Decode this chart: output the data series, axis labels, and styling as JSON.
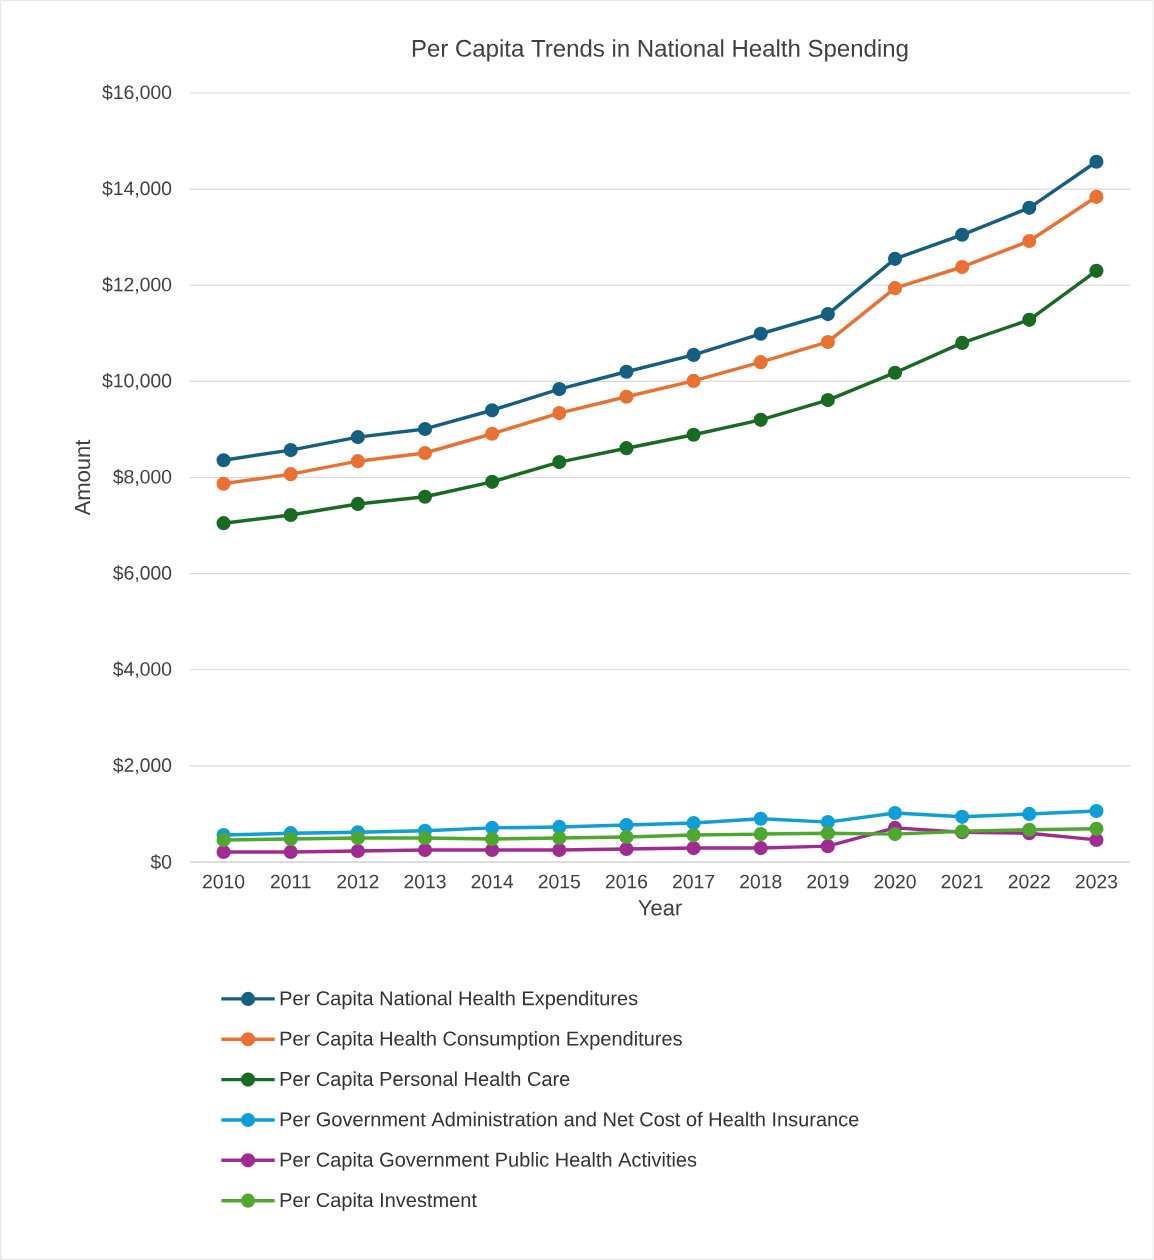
{
  "chart_data": {
    "type": "line",
    "title": "Per Capita Trends in National Health Spending",
    "xlabel": "Year",
    "ylabel": "Amount",
    "categories": [
      "2010",
      "2011",
      "2012",
      "2013",
      "2014",
      "2015",
      "2016",
      "2017",
      "2018",
      "2019",
      "2020",
      "2021",
      "2022",
      "2023"
    ],
    "series": [
      {
        "name": "Per Capita National Health Expenditures",
        "color": "#156082",
        "values": [
          8360,
          8570,
          8840,
          9010,
          9400,
          9840,
          10200,
          10550,
          10990,
          11400,
          12550,
          13050,
          13610,
          14570
        ]
      },
      {
        "name": "Per Capita Health Consumption Expenditures",
        "color": "#e97132",
        "values": [
          7870,
          8070,
          8340,
          8510,
          8910,
          9340,
          9680,
          10010,
          10400,
          10820,
          11940,
          12380,
          12920,
          13840
        ]
      },
      {
        "name": "Per Capita  Personal Health Care",
        "color": "#196b24",
        "values": [
          7050,
          7220,
          7450,
          7600,
          7910,
          8320,
          8610,
          8890,
          9200,
          9610,
          10180,
          10800,
          11280,
          12300
        ]
      },
      {
        "name": "Per Government Administration and Net Cost of Health Insurance",
        "color": "#0f9ed5",
        "values": [
          560,
          600,
          620,
          650,
          710,
          730,
          770,
          810,
          900,
          830,
          1020,
          940,
          1000,
          1060
        ]
      },
      {
        "name": "Per Capita Government Public Health Activities",
        "color": "#a02b93",
        "values": [
          210,
          210,
          230,
          250,
          250,
          250,
          270,
          290,
          290,
          330,
          710,
          620,
          600,
          460
        ]
      },
      {
        "name": "Per Capita Investment",
        "color": "#4ea72e",
        "values": [
          460,
          480,
          500,
          500,
          480,
          500,
          520,
          560,
          580,
          600,
          580,
          640,
          670,
          690
        ]
      }
    ],
    "ylim": [
      0,
      16000
    ],
    "yticks": [
      {
        "value": 0,
        "label": "$0"
      },
      {
        "value": 2000,
        "label": "$2,000"
      },
      {
        "value": 4000,
        "label": "$4,000"
      },
      {
        "value": 6000,
        "label": "$6,000"
      },
      {
        "value": 8000,
        "label": "$8,000"
      },
      {
        "value": 10000,
        "label": "$10,000"
      },
      {
        "value": 12000,
        "label": "$12,000"
      },
      {
        "value": 14000,
        "label": "$14,000"
      },
      {
        "value": 16000,
        "label": "$16,000"
      }
    ],
    "grid": "y",
    "legend": "bottom",
    "marker": "circle",
    "line_style": "solid"
  }
}
